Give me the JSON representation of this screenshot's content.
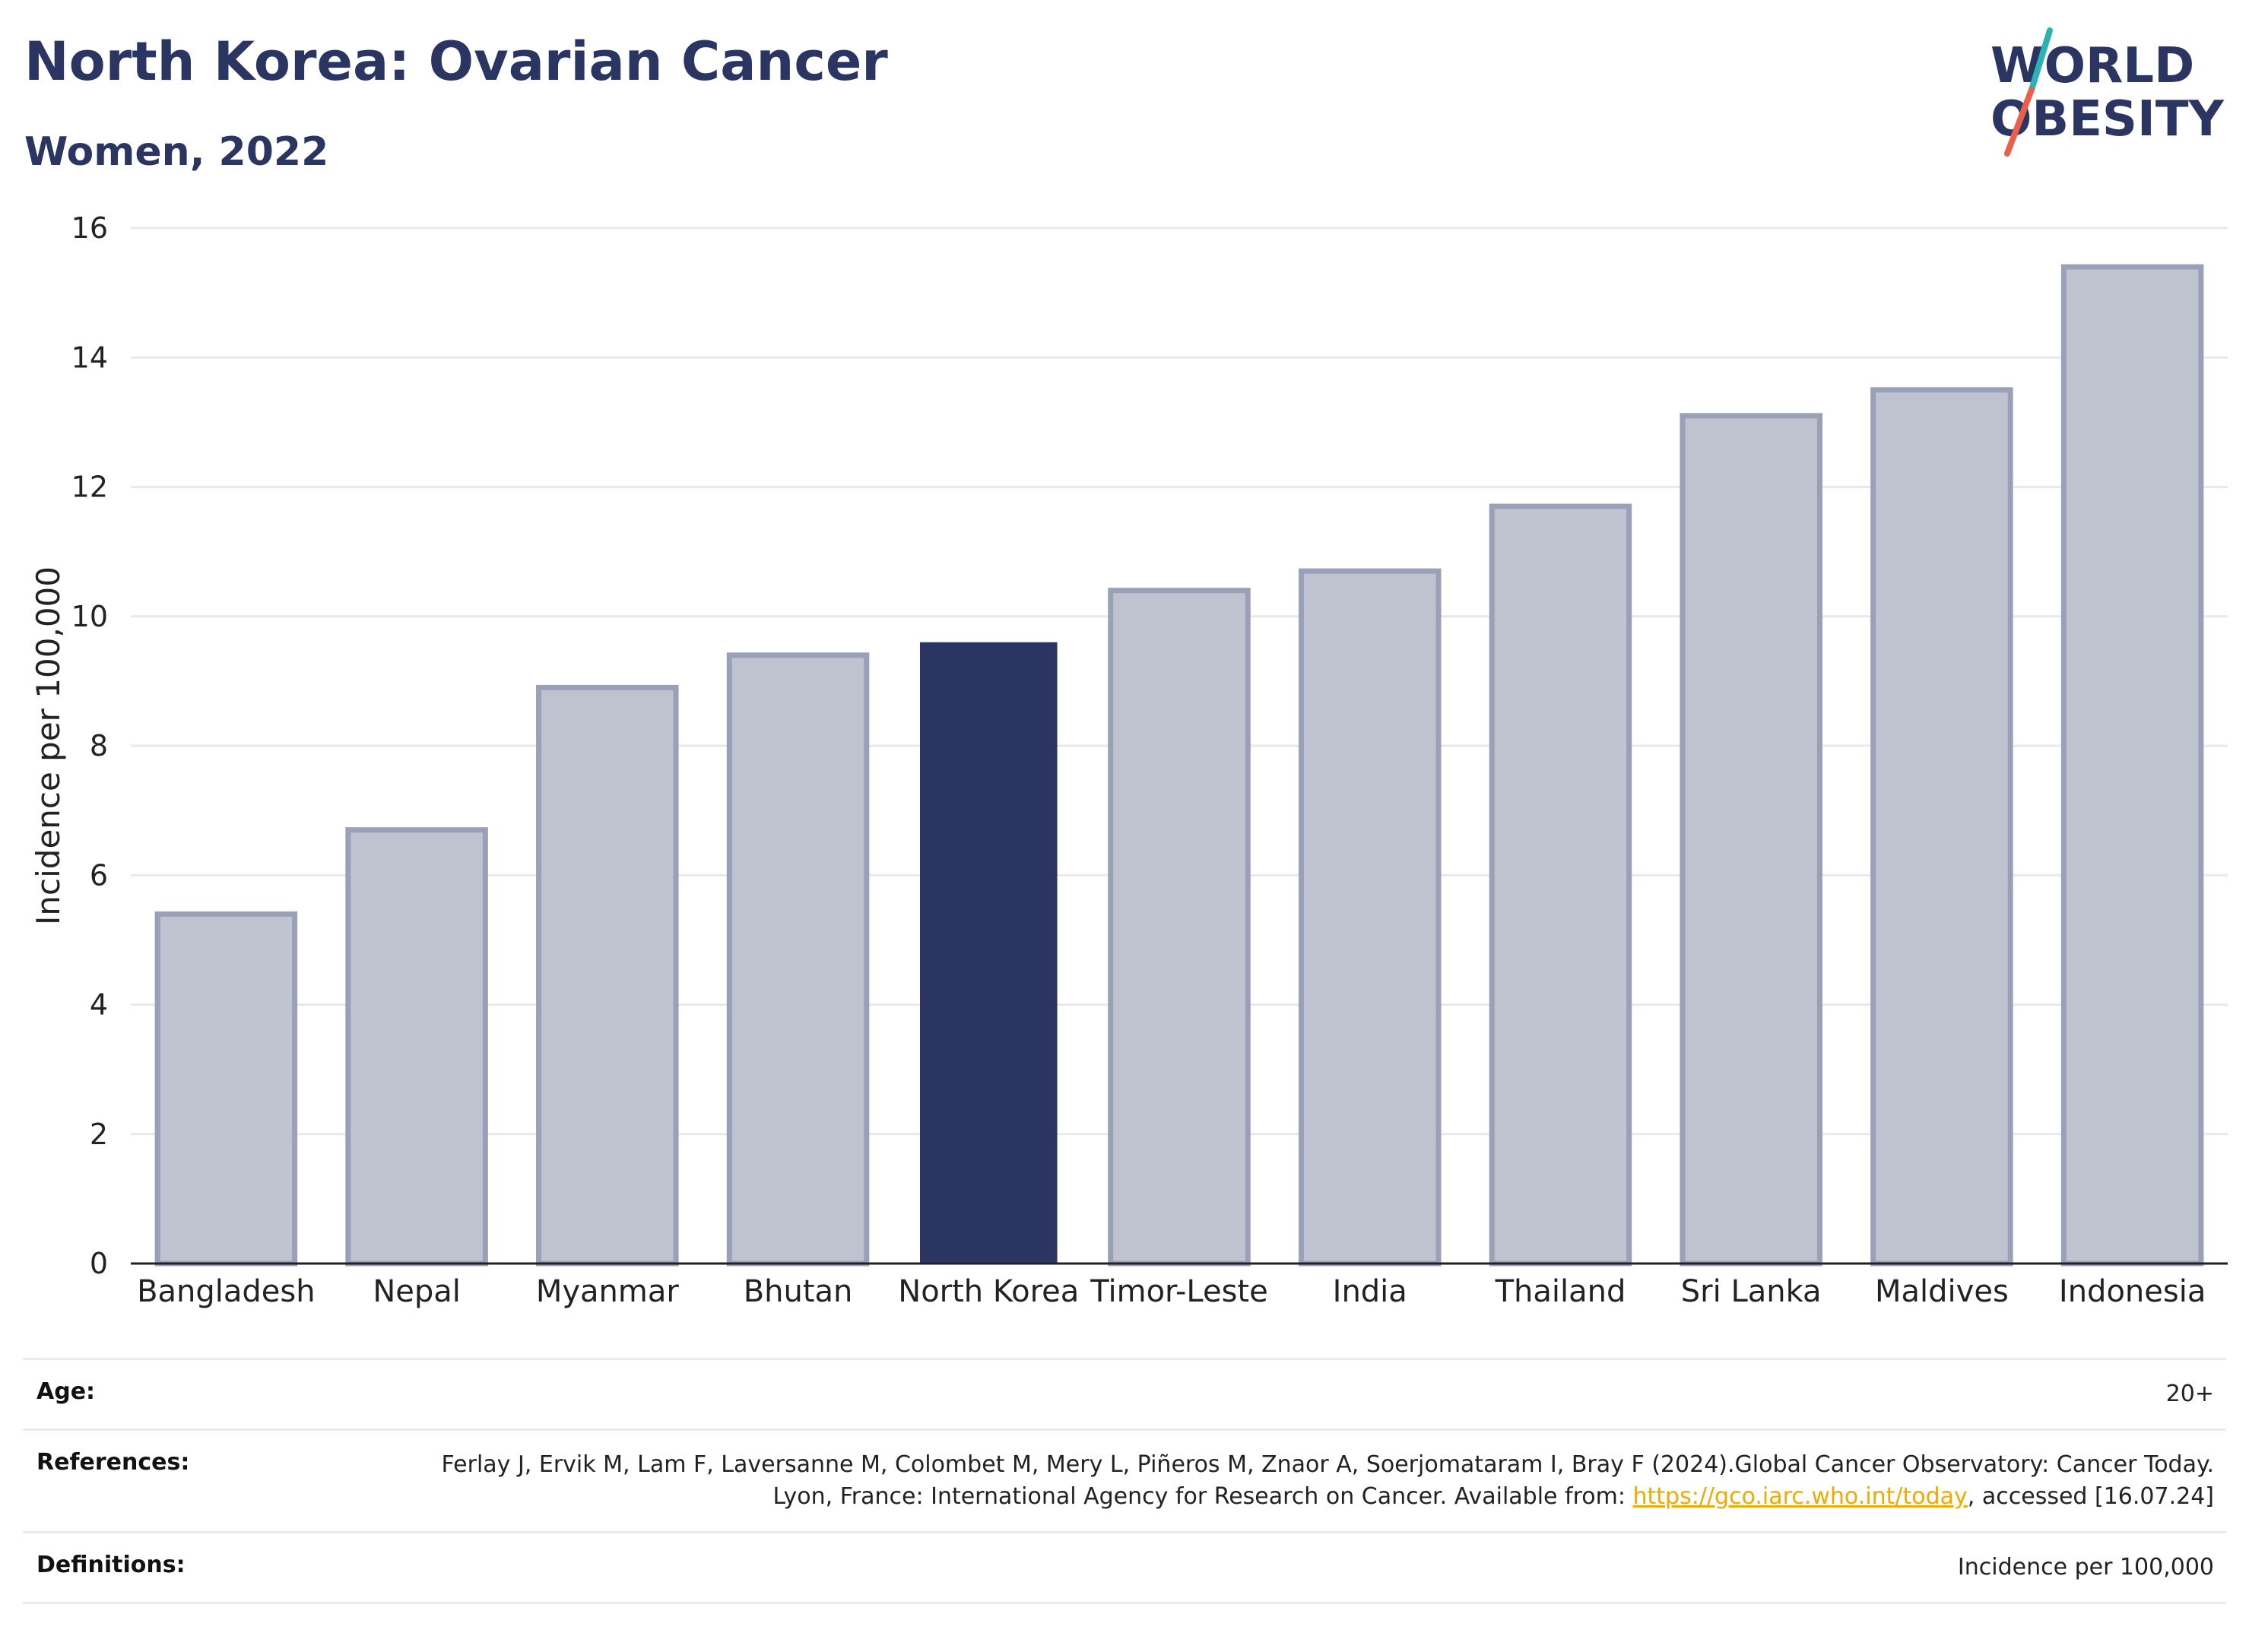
{
  "header": {
    "title": "North Korea: Ovarian Cancer",
    "subtitle": "Women, 2022"
  },
  "logo": {
    "line1": "WORLD",
    "line2": "OBESITY",
    "colors": {
      "text": "#2a3561",
      "slash_top": "#2bb3b1",
      "slash_bottom": "#e8604c"
    }
  },
  "chart_data": {
    "type": "bar",
    "title": "North Korea: Ovarian Cancer",
    "subtitle": "Women, 2022",
    "categories": [
      "Bangladesh",
      "Nepal",
      "Myanmar",
      "Bhutan",
      "North Korea",
      "Timor-Leste",
      "India",
      "Thailand",
      "Sri Lanka",
      "Maldives",
      "Indonesia"
    ],
    "values": [
      5.4,
      6.7,
      8.9,
      9.4,
      9.6,
      10.4,
      10.7,
      11.7,
      13.1,
      13.5,
      15.4
    ],
    "highlight": "North Korea",
    "xlabel": "",
    "ylabel": "Incidence per 100,000",
    "ylim": [
      0,
      16
    ],
    "yticks": [
      0,
      2,
      4,
      6,
      8,
      10,
      12,
      14,
      16
    ],
    "grid": true,
    "colors": {
      "bar": "#bfc3d0",
      "bar_border": "#9aa0b8",
      "highlight": "#2a3561",
      "grid": "#e8e8ee",
      "axis": "#222222"
    }
  },
  "info": {
    "age_label": "Age:",
    "age_value": "20+",
    "references_label": "References:",
    "references_text": "Ferlay J, Ervik M, Lam F, Laversanne M, Colombet M, Mery L, Piñeros M, Znaor A, Soerjomataram I, Bray F (2024).Global Cancer Observatory: Cancer Today. Lyon, France: International Agency for Research on Cancer. Available from: ",
    "references_link": "https://gco.iarc.who.int/today",
    "references_tail": ", accessed [16.07.24]",
    "definitions_label": "Definitions:",
    "definitions_value": "Incidence per 100,000"
  }
}
